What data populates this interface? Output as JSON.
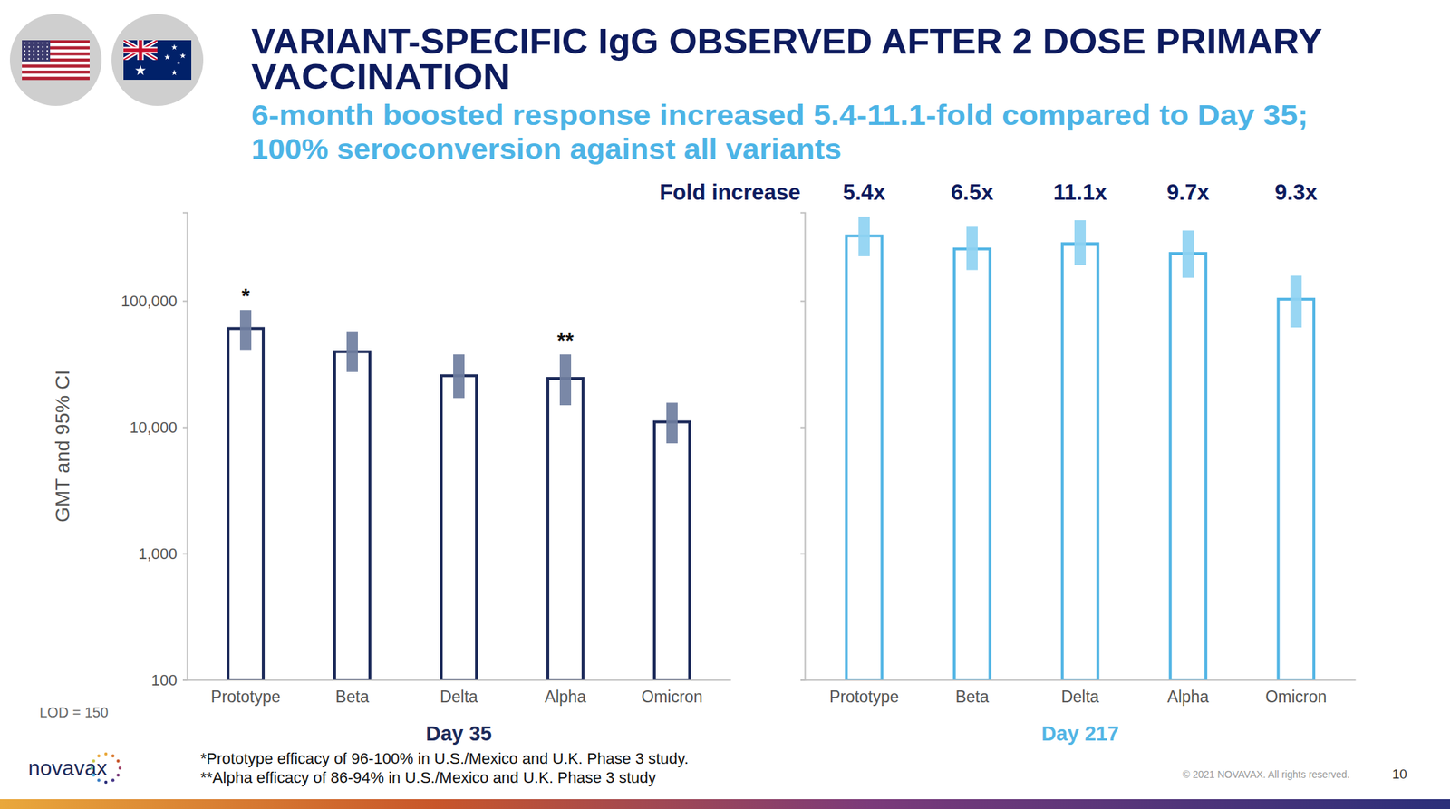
{
  "page": {
    "title": [
      "VARIANT-SPECIFIC IgG OBSERVED AFTER 2 DOSE PRIMARY",
      "VACCINATION"
    ],
    "subtitle": [
      "6-month boosted response increased 5.4-11.1-fold compared to Day 35;",
      "100% seroconversion against all variants"
    ],
    "lod": "LOD = 150",
    "footnotes": [
      "*Prototype efficacy of 96-100% in U.S./Mexico and U.K. Phase 3 study.",
      "**Alpha efficacy of 86-94% in U.S./Mexico and U.K. Phase 3 study"
    ],
    "logo": "novavax",
    "copyright": "© 2021 NOVAVAX. All rights reserved.",
    "page_number": "10"
  },
  "chart_data": [
    {
      "type": "bar",
      "log": "y",
      "categories": [
        "Prototype",
        "Beta",
        "Delta",
        "Alpha",
        "Omicron"
      ],
      "values": [
        60300,
        39500,
        25500,
        24300,
        11000
      ],
      "ci_low": [
        40900,
        27300,
        17000,
        14900,
        7450
      ],
      "ci_high": [
        84500,
        57300,
        37600,
        37600,
        15600
      ],
      "color": "#1c2a5a",
      "ylim": [
        100,
        500000
      ],
      "yticks": [
        100,
        {
          "value": 1000,
          "label": "1,000"
        },
        {
          "value": 10000,
          "label": "10,000"
        },
        {
          "value": 100000,
          "label": "100,000"
        }
      ],
      "ylabel": "GMT and 95% CI",
      "xlabel": "Day 35",
      "annotations": [
        {
          "x": "Prototype",
          "text": "*"
        },
        {
          "x": "Alpha",
          "text": "**"
        }
      ]
    },
    {
      "type": "bar",
      "log": "y",
      "categories": [
        "Prototype",
        "Beta",
        "Delta",
        "Alpha",
        "Omicron"
      ],
      "values": [
        326000,
        257000,
        283000,
        237000,
        103000
      ],
      "ci_low": [
        225000,
        175000,
        193000,
        152000,
        61400
      ],
      "ci_high": [
        464000,
        385000,
        434000,
        360000,
        158000
      ],
      "color": "#52b5e5",
      "ylim": [
        100,
        500000
      ],
      "yticks": [
        100,
        1000,
        10000,
        100000
      ],
      "tick_labels": "x",
      "xlabel": "Day 217",
      "fold_increase": {
        "title": "Fold increase",
        "labels": [
          "5.4x",
          "6.5x",
          "11.1x",
          "9.7x",
          "9.3x"
        ]
      }
    }
  ]
}
